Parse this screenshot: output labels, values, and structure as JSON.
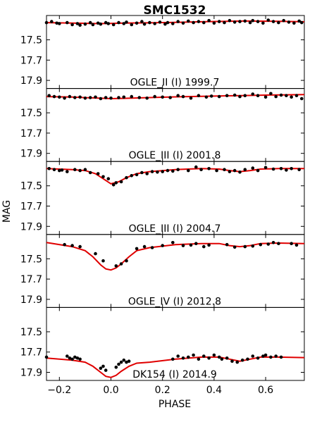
{
  "chart_data": {
    "type": "scatter",
    "title": "SMC1532",
    "xlabel": "PHASE",
    "ylabel": "MAG",
    "xlim": [
      -0.25,
      0.75
    ],
    "xticks": [
      -0.2,
      0.0,
      0.2,
      0.4,
      0.6
    ],
    "xtick_labels": [
      "−0.2",
      "0.0",
      "0.2",
      "0.4",
      "0.6"
    ],
    "ylim": [
      17.98,
      17.26
    ],
    "y_inverted": true,
    "yticks": [
      17.5,
      17.7,
      17.9
    ],
    "ytick_labels": [
      "17.5",
      "17.7",
      "17.9"
    ],
    "grid": false,
    "point_color": "#000000",
    "model_color": "#e00000",
    "panels": [
      {
        "label": "OGLE_II (I) 1999.7",
        "model_x": [
          -0.25,
          -0.15,
          -0.05,
          0.0,
          0.05,
          0.15,
          0.25,
          0.35,
          0.45,
          0.5,
          0.55,
          0.6,
          0.65,
          0.75
        ],
        "model_y": [
          17.33,
          17.335,
          17.34,
          17.338,
          17.335,
          17.332,
          17.328,
          17.322,
          17.318,
          17.315,
          17.315,
          17.316,
          17.318,
          17.322
        ],
        "x": [
          -0.25,
          -0.23,
          -0.21,
          -0.2,
          -0.17,
          -0.15,
          -0.13,
          -0.12,
          -0.1,
          -0.08,
          -0.07,
          -0.05,
          -0.04,
          -0.02,
          -0.01,
          0.01,
          0.03,
          0.05,
          0.06,
          0.08,
          0.1,
          0.12,
          0.13,
          0.15,
          0.17,
          0.19,
          0.21,
          0.22,
          0.24,
          0.26,
          0.28,
          0.3,
          0.32,
          0.34,
          0.36,
          0.38,
          0.4,
          0.42,
          0.44,
          0.46,
          0.48,
          0.5,
          0.52,
          0.54,
          0.55,
          0.57,
          0.59,
          0.61,
          0.63,
          0.65,
          0.67,
          0.69,
          0.71,
          0.73,
          0.74
        ],
        "y": [
          17.33,
          17.32,
          17.335,
          17.34,
          17.33,
          17.35,
          17.34,
          17.355,
          17.345,
          17.33,
          17.35,
          17.335,
          17.345,
          17.33,
          17.34,
          17.35,
          17.33,
          17.34,
          17.325,
          17.35,
          17.335,
          17.32,
          17.345,
          17.33,
          17.34,
          17.325,
          17.345,
          17.33,
          17.34,
          17.32,
          17.335,
          17.315,
          17.33,
          17.32,
          17.33,
          17.31,
          17.335,
          17.32,
          17.33,
          17.31,
          17.325,
          17.32,
          17.315,
          17.33,
          17.31,
          17.32,
          17.335,
          17.305,
          17.32,
          17.33,
          17.31,
          17.325,
          17.335,
          17.315,
          17.33
        ]
      },
      {
        "label": "OGLE_III (I) 2001.8",
        "model_x": [
          -0.25,
          -0.15,
          -0.05,
          0.0,
          0.05,
          0.15,
          0.25,
          0.35,
          0.45,
          0.5,
          0.55,
          0.6,
          0.65,
          0.75
        ],
        "model_y": [
          17.34,
          17.345,
          17.355,
          17.36,
          17.357,
          17.35,
          17.343,
          17.338,
          17.332,
          17.33,
          17.328,
          17.325,
          17.323,
          17.32
        ],
        "x": [
          -0.24,
          -0.22,
          -0.2,
          -0.18,
          -0.16,
          -0.14,
          -0.12,
          -0.1,
          -0.08,
          -0.06,
          -0.04,
          -0.02,
          0.0,
          0.03,
          0.05,
          0.08,
          0.11,
          0.14,
          0.17,
          0.2,
          0.23,
          0.26,
          0.28,
          0.31,
          0.34,
          0.37,
          0.39,
          0.42,
          0.45,
          0.48,
          0.5,
          0.52,
          0.55,
          0.57,
          0.6,
          0.62,
          0.64,
          0.66,
          0.68,
          0.7,
          0.72,
          0.74
        ],
        "y": [
          17.33,
          17.34,
          17.345,
          17.355,
          17.34,
          17.35,
          17.345,
          17.355,
          17.35,
          17.345,
          17.36,
          17.35,
          17.355,
          17.35,
          17.345,
          17.34,
          17.35,
          17.355,
          17.34,
          17.345,
          17.35,
          17.33,
          17.34,
          17.355,
          17.33,
          17.345,
          17.335,
          17.34,
          17.33,
          17.325,
          17.34,
          17.33,
          17.315,
          17.33,
          17.345,
          17.31,
          17.34,
          17.325,
          17.33,
          17.345,
          17.33,
          17.36
        ]
      },
      {
        "label": "OGLE_III (I) 2004.7",
        "model_x": [
          -0.25,
          -0.15,
          -0.1,
          -0.06,
          -0.03,
          0.0,
          0.03,
          0.06,
          0.1,
          0.15,
          0.25,
          0.35,
          0.42,
          0.46,
          0.5,
          0.54,
          0.58,
          0.65,
          0.75
        ],
        "model_y": [
          17.33,
          17.34,
          17.35,
          17.38,
          17.43,
          17.48,
          17.46,
          17.42,
          17.38,
          17.36,
          17.34,
          17.33,
          17.335,
          17.35,
          17.36,
          17.35,
          17.335,
          17.33,
          17.33
        ],
        "x": [
          -0.24,
          -0.22,
          -0.2,
          -0.19,
          -0.17,
          -0.14,
          -0.12,
          -0.1,
          -0.08,
          -0.05,
          -0.03,
          -0.01,
          0.01,
          0.02,
          0.04,
          0.06,
          0.08,
          0.1,
          0.12,
          0.14,
          0.16,
          0.18,
          0.2,
          0.22,
          0.24,
          0.26,
          0.3,
          0.33,
          0.35,
          0.38,
          0.41,
          0.44,
          0.46,
          0.48,
          0.5,
          0.52,
          0.55,
          0.57,
          0.6,
          0.63,
          0.66,
          0.68,
          0.7,
          0.73
        ],
        "y": [
          17.33,
          17.34,
          17.35,
          17.345,
          17.36,
          17.34,
          17.35,
          17.34,
          17.37,
          17.38,
          17.41,
          17.43,
          17.49,
          17.47,
          17.46,
          17.42,
          17.4,
          17.39,
          17.37,
          17.38,
          17.36,
          17.365,
          17.36,
          17.35,
          17.355,
          17.34,
          17.35,
          17.315,
          17.34,
          17.33,
          17.35,
          17.34,
          17.36,
          17.35,
          17.365,
          17.34,
          17.325,
          17.35,
          17.32,
          17.335,
          17.33,
          17.345,
          17.33,
          17.34
        ]
      },
      {
        "label": "OGLE_IV (I) 2012.8",
        "model_x": [
          -0.25,
          -0.15,
          -0.1,
          -0.07,
          -0.04,
          -0.02,
          0.0,
          0.02,
          0.04,
          0.07,
          0.1,
          0.15,
          0.25,
          0.35,
          0.42,
          0.46,
          0.5,
          0.54,
          0.58,
          0.65,
          0.75
        ],
        "model_y": [
          17.34,
          17.38,
          17.42,
          17.48,
          17.56,
          17.6,
          17.61,
          17.59,
          17.55,
          17.48,
          17.42,
          17.39,
          17.36,
          17.35,
          17.35,
          17.37,
          17.38,
          17.37,
          17.35,
          17.345,
          17.35
        ],
        "x": [
          -0.18,
          -0.15,
          -0.12,
          -0.06,
          -0.03,
          0.02,
          0.04,
          0.06,
          0.1,
          0.13,
          0.16,
          0.2,
          0.24,
          0.28,
          0.31,
          0.33,
          0.36,
          0.38,
          0.45,
          0.48,
          0.52,
          0.55,
          0.58,
          0.61,
          0.63,
          0.65,
          0.7,
          0.72
        ],
        "y": [
          17.36,
          17.37,
          17.38,
          17.45,
          17.52,
          17.57,
          17.55,
          17.52,
          17.4,
          17.38,
          17.39,
          17.37,
          17.34,
          17.37,
          17.365,
          17.35,
          17.38,
          17.365,
          17.36,
          17.385,
          17.38,
          17.375,
          17.36,
          17.355,
          17.34,
          17.35,
          17.35,
          17.365
        ]
      },
      {
        "label": "DK154 (I) 2014.9",
        "model_x": [
          -0.25,
          -0.15,
          -0.1,
          -0.07,
          -0.04,
          -0.02,
          0.0,
          0.02,
          0.04,
          0.07,
          0.1,
          0.15,
          0.25,
          0.35,
          0.42,
          0.46,
          0.5,
          0.54,
          0.58,
          0.65,
          0.75
        ],
        "model_y": [
          17.76,
          17.78,
          17.8,
          17.84,
          17.9,
          17.94,
          17.95,
          17.93,
          17.89,
          17.84,
          17.81,
          17.8,
          17.77,
          17.75,
          17.75,
          17.77,
          17.79,
          17.77,
          17.75,
          17.75,
          17.755
        ],
        "x": [
          -0.25,
          -0.17,
          -0.16,
          -0.15,
          -0.14,
          -0.13,
          -0.12,
          -0.04,
          -0.03,
          -0.02,
          0.02,
          0.03,
          0.04,
          0.05,
          0.06,
          0.07,
          0.24,
          0.26,
          0.28,
          0.3,
          0.32,
          0.34,
          0.36,
          0.38,
          0.4,
          0.42,
          0.43,
          0.45,
          0.47,
          0.49,
          0.51,
          0.53,
          0.55,
          0.57,
          0.59,
          0.6,
          0.62,
          0.64,
          0.66
        ],
        "y": [
          17.75,
          17.74,
          17.76,
          17.77,
          17.75,
          17.76,
          17.77,
          17.86,
          17.84,
          17.88,
          17.85,
          17.82,
          17.8,
          17.78,
          17.8,
          17.79,
          17.77,
          17.74,
          17.76,
          17.75,
          17.73,
          17.77,
          17.74,
          17.76,
          17.73,
          17.75,
          17.77,
          17.76,
          17.79,
          17.8,
          17.78,
          17.77,
          17.74,
          17.76,
          17.74,
          17.73,
          17.75,
          17.74,
          17.75
        ]
      }
    ]
  }
}
